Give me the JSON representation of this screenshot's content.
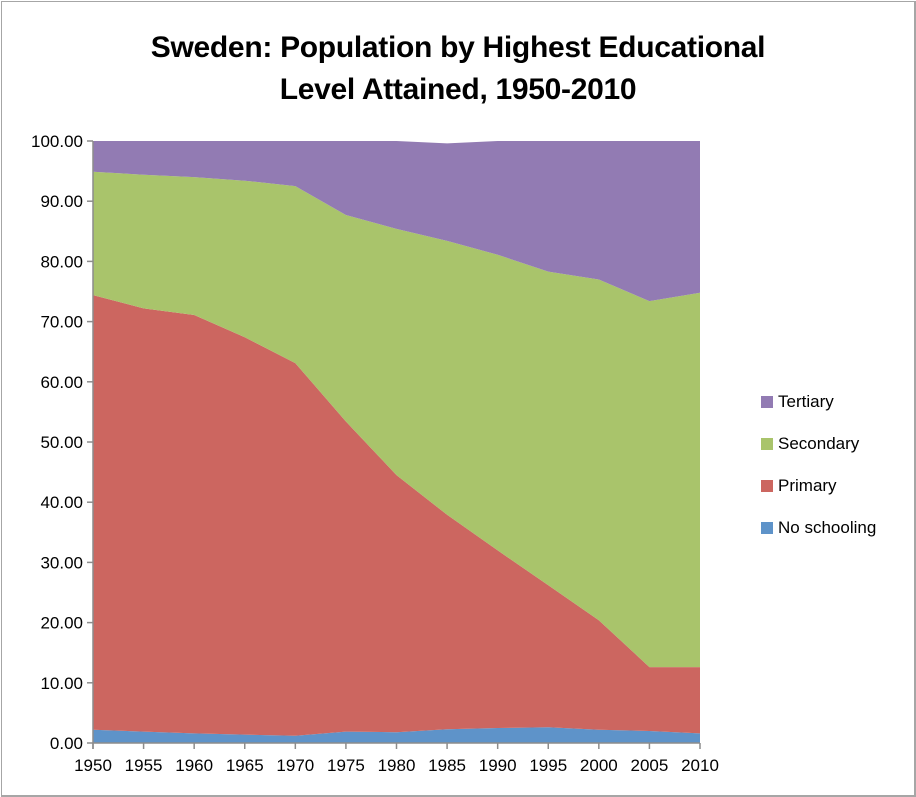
{
  "chart_data": {
    "type": "area",
    "stacked": true,
    "title": "Sweden: Population by Highest Educational Level Attained, 1950-2010",
    "title_lines": [
      "Sweden: Population by Highest Educational",
      "Level Attained, 1950-2010"
    ],
    "xlabel": "",
    "ylabel": "",
    "x": [
      "1950",
      "1955",
      "1960",
      "1965",
      "1970",
      "1975",
      "1980",
      "1985",
      "1990",
      "1995",
      "2000",
      "2005",
      "2010"
    ],
    "ylim": [
      0,
      100
    ],
    "yticks": [
      "0.00",
      "10.00",
      "20.00",
      "30.00",
      "40.00",
      "50.00",
      "60.00",
      "70.00",
      "80.00",
      "90.00",
      "100.00"
    ],
    "grid": false,
    "legend_position": "right",
    "series": [
      {
        "name": "No schooling",
        "color": "#5E93C9",
        "values": [
          2.2,
          1.9,
          1.6,
          1.4,
          1.2,
          1.9,
          1.8,
          2.3,
          2.5,
          2.6,
          2.2,
          2.0,
          1.6
        ]
      },
      {
        "name": "Primary",
        "color": "#CC6660",
        "values": [
          72.2,
          70.3,
          69.5,
          66.0,
          61.9,
          51.5,
          42.7,
          35.6,
          29.5,
          23.6,
          18.2,
          10.6,
          11.0
        ]
      },
      {
        "name": "Secondary",
        "color": "#A9C46B",
        "values": [
          20.5,
          22.2,
          22.9,
          26.0,
          29.4,
          34.3,
          40.9,
          45.5,
          49.1,
          52.1,
          56.6,
          60.8,
          62.2
        ]
      },
      {
        "name": "Tertiary",
        "color": "#927BB3",
        "values": [
          5.1,
          5.6,
          6.0,
          6.6,
          7.5,
          12.3,
          14.6,
          16.2,
          18.9,
          21.7,
          23.0,
          26.6,
          25.2
        ]
      }
    ],
    "legend_order": [
      "Tertiary",
      "Secondary",
      "Primary",
      "No schooling"
    ]
  }
}
